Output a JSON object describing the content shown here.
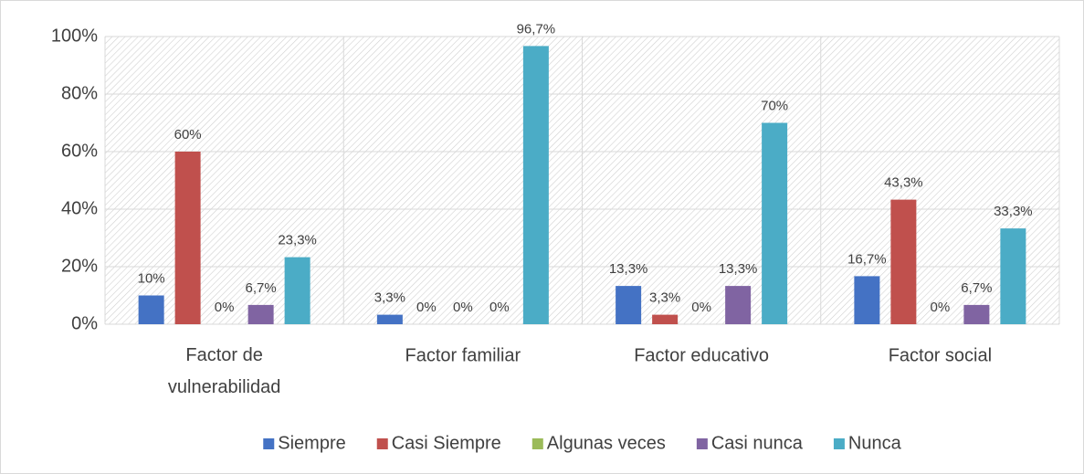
{
  "chart_data": {
    "type": "bar",
    "categories": [
      "Factor de vulnerabilidad",
      "Factor familiar",
      "Factor educativo",
      "Factor social"
    ],
    "series": [
      {
        "name": "Siempre",
        "color": "#4472c4",
        "values": [
          10,
          3.3,
          13.3,
          16.7
        ],
        "value_labels": [
          "10%",
          "3,3%",
          "13,3%",
          "16,7%"
        ]
      },
      {
        "name": "Casi Siempre",
        "color": "#c0504d",
        "values": [
          60,
          0,
          3.3,
          43.3
        ],
        "value_labels": [
          "60%",
          "0%",
          "3,3%",
          "43,3%"
        ]
      },
      {
        "name": "Algunas veces",
        "color": "#9bbb59",
        "values": [
          0,
          0,
          0,
          0
        ],
        "value_labels": [
          "0%",
          "0%",
          "0%",
          "0%"
        ]
      },
      {
        "name": "Casi nunca",
        "color": "#8064a2",
        "values": [
          6.7,
          0,
          13.3,
          6.7
        ],
        "value_labels": [
          "6,7%",
          "0%",
          "13,3%",
          "6,7%"
        ]
      },
      {
        "name": "Nunca",
        "color": "#4bacc6",
        "values": [
          23.3,
          96.7,
          70,
          33.3
        ],
        "value_labels": [
          "23,3%",
          "96,7%",
          "70%",
          "33,3%"
        ]
      }
    ],
    "ylim": [
      0,
      100
    ],
    "yticks": [
      {
        "value": 0,
        "label": "0%"
      },
      {
        "value": 20,
        "label": "20%"
      },
      {
        "value": 40,
        "label": "40%"
      },
      {
        "value": 60,
        "label": "60%"
      },
      {
        "value": 80,
        "label": "80%"
      },
      {
        "value": 100,
        "label": "100%"
      }
    ],
    "grid": true,
    "legend": "bottom"
  }
}
